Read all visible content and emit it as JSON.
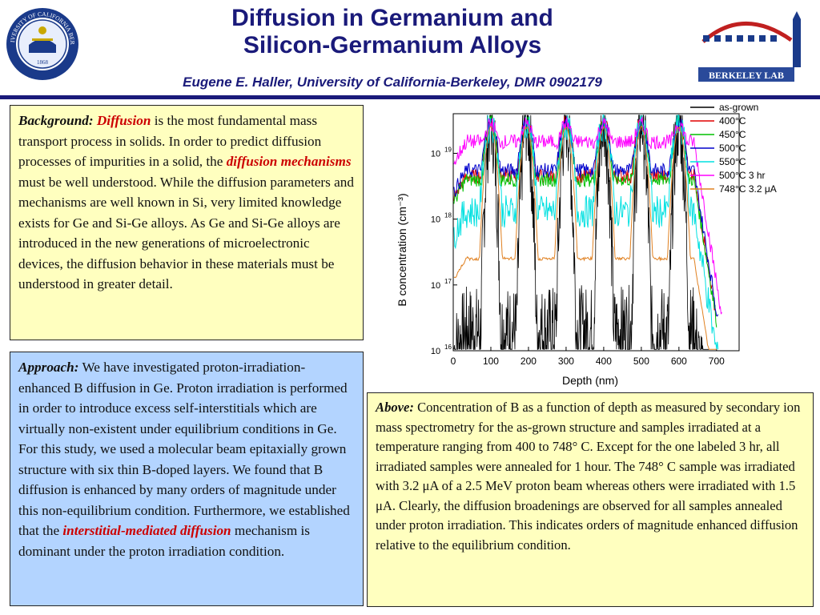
{
  "header": {
    "title_line1": "Diffusion in Germanium and",
    "title_line2": "Silicon-Germanium Alloys",
    "subtitle": "Eugene E. Haller, University of California-Berkeley, DMR 0902179",
    "rule_color": "#1a1a7a"
  },
  "logos": {
    "uc_seal_text": "THE UNIVERSITY OF CALIFORNIA BERKELEY",
    "uc_seal_year": "1868",
    "lbl_text": "BERKELEY LAB"
  },
  "background_box": {
    "label": "Background:",
    "key1": "Diffusion",
    "text1": " is the most fundamental mass transport process in solids. In order to predict diffusion processes of impurities in a solid, the ",
    "key2": "diffusion mechanisms",
    "text2": " must be well understood. While the diffusion parameters and mechanisms are well known in Si, very limited knowledge exists for Ge and Si-Ge alloys. As Ge and Si-Ge alloys are introduced in the new generations of microelectronic devices, the diffusion behavior in these materials must be understood in greater detail."
  },
  "approach_box": {
    "label": "Approach:",
    "text1": " We have investigated proton-irradiation-enhanced B diffusion in Ge. Proton irradiation is performed in order to introduce excess self-interstitials which are virtually non-existent  under equilibrium conditions in Ge. For this study, we used a molecular beam epitaxially grown structure with six thin B-doped layers. We found that B diffusion is enhanced by many orders of magnitude under this non-equilibrium condition. Furthermore, we established that the ",
    "key1": "interstitial-mediated diffusion",
    "text2": " mechanism is dominant under the proton irradiation condition."
  },
  "above_box": {
    "label": "Above:",
    "text": " Concentration of B as a function of depth as measured by secondary ion mass spectrometry for the as-grown structure and samples irradiated at a temperature ranging from 400 to 748° C. Except for the one labeled 3 hr, all irradiated samples were annealed for 1 hour. The 748° C sample was irradiated with 3.2 μA of a 2.5 MeV proton beam whereas others were irradiated with 1.5 μA. Clearly, the diffusion broadenings are observed for all samples annealed under proton irradiation. This indicates orders of magnitude enhanced diffusion relative to the equilibrium condition."
  },
  "colors": {
    "background_fill": "#ffffbf",
    "approach_fill": "#b3d4ff",
    "keyword_red": "#cc0000",
    "title_navy": "#1a1a7a"
  },
  "chart_data": {
    "type": "line",
    "xlabel": "Depth (nm)",
    "ylabel": "B concentration (cm⁻³)",
    "y_scale": "log",
    "xlim": [
      0,
      760
    ],
    "ylim": [
      1e+16,
      4e+19
    ],
    "x_ticks": [
      0,
      100,
      200,
      300,
      400,
      500,
      600,
      700
    ],
    "y_ticks": [
      {
        "value": 1e+16,
        "label": "10",
        "exp": "16"
      },
      {
        "value": 1e+17,
        "label": "10",
        "exp": "17"
      },
      {
        "value": 1e+18,
        "label": "10",
        "exp": "18"
      },
      {
        "value": 1e+19,
        "label": "10",
        "exp": "19"
      }
    ],
    "peak_depths": [
      100,
      195,
      300,
      400,
      500,
      600
    ],
    "legend_position": "top-right",
    "series": [
      {
        "name": "as-grown",
        "color": "#000000",
        "peak": 3.3e+19,
        "valley": 2e+16,
        "width": 7,
        "tail_depth": 680
      },
      {
        "name": "400°C",
        "color": "#e00000",
        "peak": 3e+19,
        "valley": 4.5e+18,
        "width": 13,
        "tail_depth": 700
      },
      {
        "name": "450°C",
        "color": "#00c000",
        "peak": 3e+19,
        "valley": 4e+18,
        "width": 12,
        "tail_depth": 700
      },
      {
        "name": "500°C",
        "color": "#0000cc",
        "peak": 2.9e+19,
        "valley": 5.5e+18,
        "width": 14,
        "tail_depth": 705
      },
      {
        "name": "550°C",
        "color": "#00e0e0",
        "peak": 2.8e+19,
        "valley": 1.3e+18,
        "width": 12,
        "tail_depth": 705
      },
      {
        "name": "500°C 3 hr",
        "color": "#ff00ff",
        "peak": 2.8e+19,
        "valley": 1.5e+19,
        "width": 18,
        "tail_depth": 715
      },
      {
        "name": "748°C 3.2 μA",
        "color": "#e08020",
        "peak": 2.5e+19,
        "valley": 2.5e+17,
        "width": 10,
        "tail_depth": 700
      }
    ]
  }
}
